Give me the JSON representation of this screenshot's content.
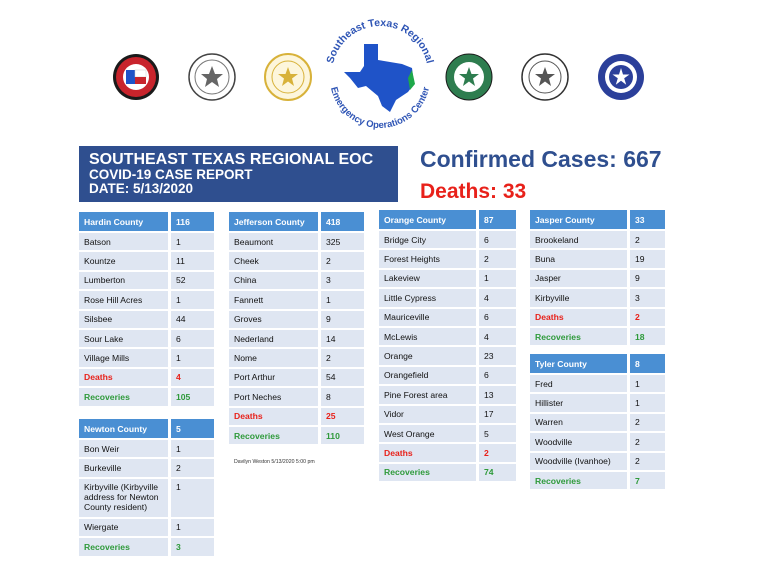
{
  "report": {
    "title": "SOUTHEAST TEXAS REGIONAL EOC",
    "subtitle": "COVID-19 CASE REPORT",
    "date": "DATE:  5/13/2020",
    "confirmed": "Confirmed Cases: 667",
    "deaths": "Deaths:  33"
  },
  "logo": {
    "text": "Southeast Texas Regional Emergency Operations Center",
    "colors": {
      "state": "#1f53c8",
      "coast": "#1ea84a",
      "ring": "#2f55b5"
    }
  },
  "seals": [
    {
      "name": "hardin-county-seal",
      "icon": "seal-icon",
      "color": "#c8242c"
    },
    {
      "name": "newton-county-seal",
      "icon": "seal-icon",
      "color": "#6a6a6a"
    },
    {
      "name": "jefferson-county-seal",
      "icon": "seal-icon",
      "color": "#d8b23a"
    },
    {
      "name": "jasper-county-seal",
      "icon": "seal-icon",
      "color": "#2e7d4f"
    },
    {
      "name": "orange-county-seal",
      "icon": "seal-icon",
      "color": "#555555"
    },
    {
      "name": "tyler-county-seal",
      "icon": "seal-icon",
      "color": "#2b3f9a"
    }
  ],
  "counties": {
    "hardin": {
      "name": "Hardin County",
      "total": "116",
      "rows": [
        {
          "city": "Batson",
          "count": "1"
        },
        {
          "city": "Kountze",
          "count": "11"
        },
        {
          "city": "Lumberton",
          "count": "52"
        },
        {
          "city": "Rose Hill Acres",
          "count": "1"
        },
        {
          "city": "Silsbee",
          "count": "44"
        },
        {
          "city": "Sour Lake",
          "count": "6"
        },
        {
          "city": "Village Mills",
          "count": "1"
        }
      ],
      "deaths": {
        "label": "Deaths",
        "count": "4"
      },
      "recoveries": {
        "label": "Recoveries",
        "count": "105"
      }
    },
    "newton": {
      "name": "Newton County",
      "total": "5",
      "rows": [
        {
          "city": "Bon Weir",
          "count": "1"
        },
        {
          "city": "Burkeville",
          "count": "2"
        },
        {
          "city": "Kirbyville (Kirbyville address for Newton County resident)",
          "count": "1"
        },
        {
          "city": "Wiergate",
          "count": "1"
        }
      ],
      "recoveries": {
        "label": "Recoveries",
        "count": "3"
      }
    },
    "jefferson": {
      "name": "Jefferson County",
      "total": "418",
      "rows": [
        {
          "city": "Beaumont",
          "count": "325"
        },
        {
          "city": "Cheek",
          "count": "2"
        },
        {
          "city": "China",
          "count": "3"
        },
        {
          "city": "Fannett",
          "count": "1"
        },
        {
          "city": "Groves",
          "count": "9"
        },
        {
          "city": "Nederland",
          "count": "14"
        },
        {
          "city": "Nome",
          "count": "2"
        },
        {
          "city": "Port Arthur",
          "count": "54"
        },
        {
          "city": "Port Neches",
          "count": "8"
        }
      ],
      "deaths": {
        "label": "Deaths",
        "count": "25"
      },
      "recoveries": {
        "label": "Recoveries",
        "count": "110"
      }
    },
    "orange": {
      "name": "Orange County",
      "total": "87",
      "rows": [
        {
          "city": "Bridge City",
          "count": "6"
        },
        {
          "city": "Forest Heights",
          "count": "2"
        },
        {
          "city": "Lakeview",
          "count": "1"
        },
        {
          "city": "Little Cypress",
          "count": "4"
        },
        {
          "city": "Mauriceville",
          "count": "6"
        },
        {
          "city": "McLewis",
          "count": "4"
        },
        {
          "city": "Orange",
          "count": "23"
        },
        {
          "city": "Orangefield",
          "count": "6"
        },
        {
          "city": "Pine Forest area",
          "count": "13"
        },
        {
          "city": "Vidor",
          "count": "17"
        },
        {
          "city": "West Orange",
          "count": "5"
        }
      ],
      "deaths": {
        "label": "Deaths",
        "count": "2"
      },
      "recoveries": {
        "label": "Recoveries",
        "count": "74"
      }
    },
    "jasper": {
      "name": "Jasper County",
      "total": "33",
      "rows": [
        {
          "city": "Brookeland",
          "count": "2"
        },
        {
          "city": "Buna",
          "count": "19"
        },
        {
          "city": "Jasper",
          "count": "9"
        },
        {
          "city": "Kirbyville",
          "count": "3"
        }
      ],
      "deaths": {
        "label": "Deaths",
        "count": "2"
      },
      "recoveries": {
        "label": "Recoveries",
        "count": "18"
      }
    },
    "tyler": {
      "name": "Tyler County",
      "total": "8",
      "rows": [
        {
          "city": "Fred",
          "count": "1"
        },
        {
          "city": "Hillister",
          "count": "1"
        },
        {
          "city": "Warren",
          "count": "2"
        },
        {
          "city": "Woodville",
          "count": "2"
        },
        {
          "city": "Woodville (Ivanhoe)",
          "count": "2"
        }
      ],
      "recoveries": {
        "label": "Recoveries",
        "count": "7"
      }
    }
  },
  "footnote": "Davilyn Weston 5/13/2020 5:00 pm"
}
